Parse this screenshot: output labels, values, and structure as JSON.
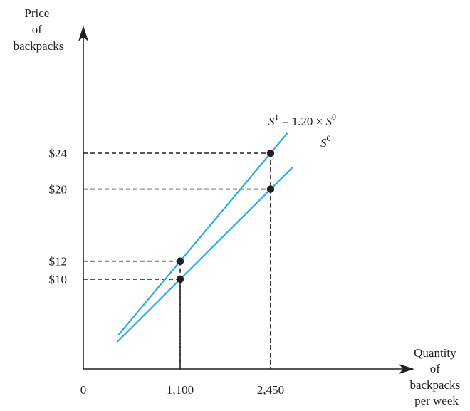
{
  "chart_data": {
    "type": "line",
    "ylabel": [
      "Price",
      "of",
      "backpacks"
    ],
    "xlabel": [
      "Quantity",
      "of",
      "backpacks",
      "per week"
    ],
    "origin_label": "0",
    "y_ticks": [
      {
        "value": 24,
        "label": "$24"
      },
      {
        "value": 20,
        "label": "$20"
      },
      {
        "value": 12,
        "label": "$12"
      },
      {
        "value": 10,
        "label": "$10"
      }
    ],
    "x_ticks": [
      {
        "value": 1100,
        "label": "1,100"
      },
      {
        "value": 2450,
        "label": "2,450"
      }
    ],
    "series": [
      {
        "key": "s1",
        "label_base": "S",
        "label_sup": "1",
        "label_rest": " = 1.20 × ",
        "label_base2": "S",
        "label_sup2": "0",
        "color": "#29abe2",
        "points": [
          {
            "x": 1100,
            "y": 12
          },
          {
            "x": 2450,
            "y": 24
          }
        ]
      },
      {
        "key": "s0",
        "label_base": "S",
        "label_sup": "0",
        "color": "#29abe2",
        "points": [
          {
            "x": 1100,
            "y": 10
          },
          {
            "x": 2450,
            "y": 20
          }
        ]
      }
    ],
    "highlighted_points": [
      {
        "x": 1100,
        "y": 10
      },
      {
        "x": 1100,
        "y": 12
      },
      {
        "x": 2450,
        "y": 20
      },
      {
        "x": 2450,
        "y": 24
      }
    ],
    "colors": {
      "axis": "#231f20",
      "line": "#29abe2",
      "point": "#231f20"
    }
  }
}
